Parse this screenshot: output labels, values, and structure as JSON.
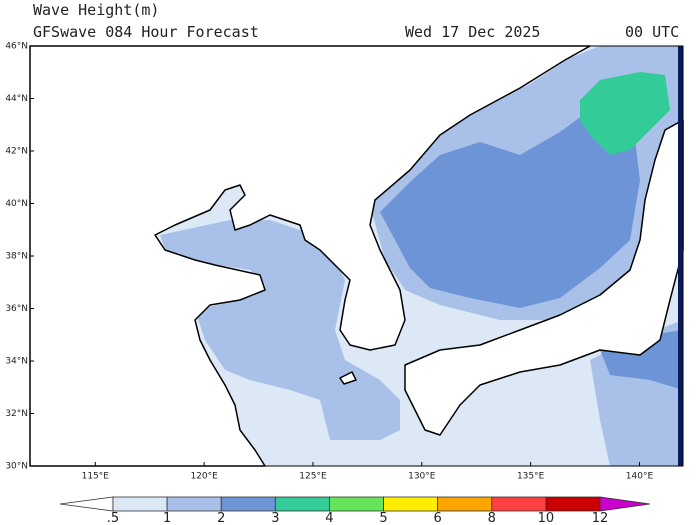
{
  "header": {
    "title": "Wave Height(m)",
    "subtitle": "GFSwave 084 Hour Forecast",
    "date": "Wed 17 Dec 2025",
    "time": "00 UTC"
  },
  "map": {
    "lon_range": [
      112,
      142
    ],
    "lat_range": [
      30,
      46
    ],
    "lat_ticks": [
      {
        "value": 30,
        "label": "30°N"
      },
      {
        "value": 32,
        "label": "32°N"
      },
      {
        "value": 34,
        "label": "34°N"
      },
      {
        "value": 36,
        "label": "36°N"
      },
      {
        "value": 38,
        "label": "38°N"
      },
      {
        "value": 40,
        "label": "40°N"
      },
      {
        "value": 42,
        "label": "42°N"
      },
      {
        "value": 44,
        "label": "44°N"
      },
      {
        "value": 46,
        "label": "46°N"
      }
    ],
    "lon_ticks": [
      {
        "value": 115,
        "label": "115°E"
      },
      {
        "value": 120,
        "label": "120°E"
      },
      {
        "value": 125,
        "label": "125°E"
      },
      {
        "value": 130,
        "label": "130°E"
      },
      {
        "value": 135,
        "label": "135°E"
      },
      {
        "value": 140,
        "label": "140°E"
      }
    ]
  },
  "colorbar": {
    "levels": [
      {
        "value": 0.5,
        "label": ".5"
      },
      1,
      2,
      3,
      4,
      5,
      6,
      8,
      10,
      12
    ],
    "colors": [
      "#ffffff",
      "#dce8f5",
      "#a9c1e9",
      "#6c94d6",
      "#33cc99",
      "#66e55c",
      "#ffee00",
      "#ffa500",
      "#ff4040",
      "#cc0000",
      "#cc00cc"
    ]
  }
}
